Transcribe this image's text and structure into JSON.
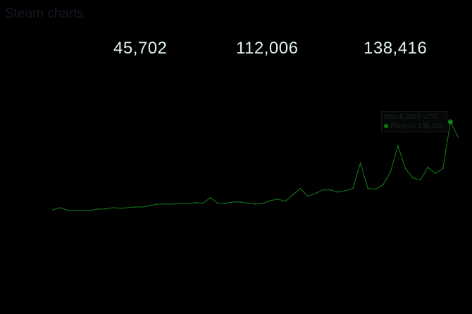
{
  "header": {
    "title": "Steam charts"
  },
  "stats": [
    "45,702",
    "112,006",
    "138,416"
  ],
  "tooltip": {
    "date": "March 2025 UTC",
    "label": "Players: 138,416"
  },
  "colors": {
    "line": "#11801a",
    "background": "#000000",
    "stat_text": "#dff2ee"
  },
  "chart_data": {
    "type": "line",
    "title": "",
    "xlabel": "",
    "ylabel": "",
    "ylim": [
      0,
      140000
    ],
    "grid": false,
    "series": [
      {
        "values": [
          3300,
          6500,
          2200,
          2200,
          2200,
          2200,
          4400,
          4400,
          6500,
          5500,
          6500,
          7600,
          7600,
          9800,
          12000,
          12000,
          12000,
          13100,
          13100,
          14200,
          13100,
          21800,
          13100,
          13100,
          15300,
          15300,
          13100,
          12000,
          13100,
          17400,
          19600,
          16400,
          26200,
          35900,
          24000,
          28300,
          33800,
          33800,
          30500,
          32700,
          35900,
          75200,
          35900,
          34900,
          41400,
          61000,
          101400,
          66500,
          52300,
          49100,
          68700,
          58900,
          66500,
          138416,
          115500
        ]
      }
    ]
  }
}
